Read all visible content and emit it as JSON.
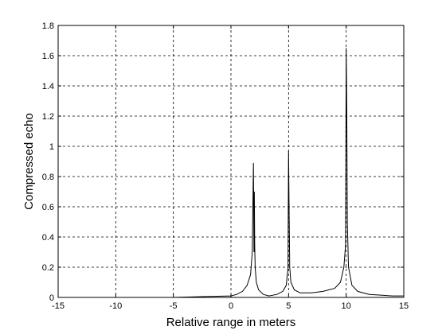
{
  "chart_data": {
    "type": "line",
    "title": "",
    "xlabel": "Relative range in meters",
    "ylabel": "Compressed echo",
    "xlim": [
      -15,
      15
    ],
    "ylim": [
      0,
      1.8
    ],
    "x_ticks": [
      -15,
      -10,
      -5,
      0,
      5,
      10,
      15
    ],
    "y_ticks": [
      0,
      0.2,
      0.4,
      0.6,
      0.8,
      1,
      1.2,
      1.4,
      1.6,
      1.8
    ],
    "x_tick_labels": [
      "-15",
      "-10",
      "-5",
      "0",
      "5",
      "10",
      "15"
    ],
    "y_tick_labels": [
      "0",
      "0.2",
      "0.4",
      "0.6",
      "0.8",
      "1",
      "1.2",
      "1.4",
      "1.6",
      "1.8"
    ],
    "grid": true,
    "grid_style": "dashed",
    "line_color": "#000000",
    "series": [
      {
        "x": [
          -15,
          -5,
          0,
          0.5,
          1.0,
          1.4,
          1.7,
          1.85,
          1.95,
          2.0,
          2.03,
          2.06,
          2.1,
          2.2,
          2.4,
          2.8,
          3.3,
          4.0,
          4.5,
          4.8,
          4.95,
          5.0,
          5.05,
          5.1,
          5.2,
          5.5,
          6.0,
          7.0,
          8.0,
          9.0,
          9.5,
          9.8,
          9.95,
          10.0,
          10.05,
          10.1,
          10.2,
          10.5,
          11.0,
          12.0,
          13.0,
          14.0,
          15.0
        ],
        "y": [
          0.0,
          0.0,
          0.01,
          0.02,
          0.04,
          0.08,
          0.15,
          0.3,
          0.89,
          0.3,
          0.7,
          0.35,
          0.2,
          0.1,
          0.05,
          0.02,
          0.01,
          0.02,
          0.04,
          0.08,
          0.2,
          0.97,
          0.55,
          0.2,
          0.1,
          0.05,
          0.03,
          0.03,
          0.04,
          0.06,
          0.1,
          0.2,
          0.35,
          1.65,
          1.25,
          0.5,
          0.2,
          0.08,
          0.04,
          0.02,
          0.015,
          0.01,
          0.01
        ]
      }
    ]
  }
}
